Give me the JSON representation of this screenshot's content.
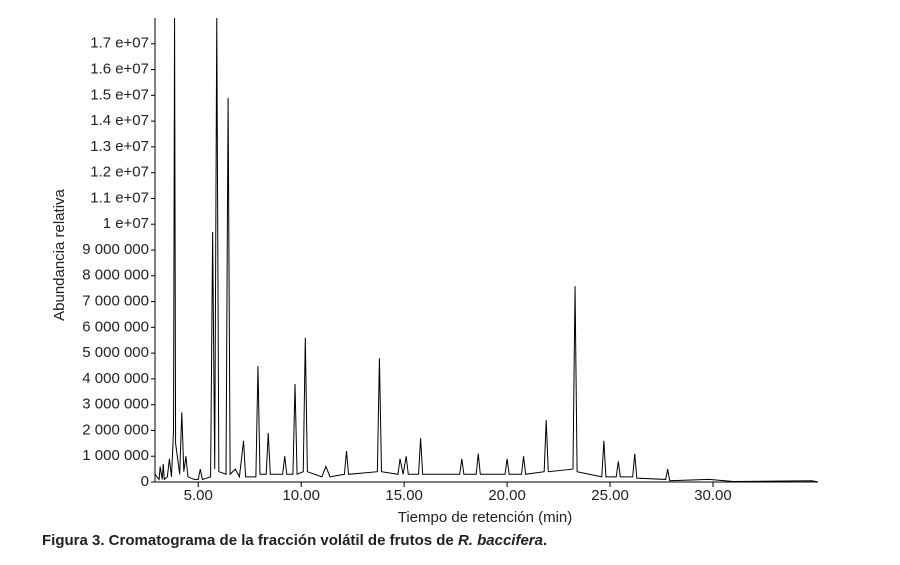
{
  "chart_data": {
    "type": "line",
    "y_label": "Abundancia relativa",
    "x_label": "Tiempo de retención (min)",
    "caption": {
      "text": "Figura 3. Cromatograma de la fracción volátil de frutos de",
      "species": "R. baccifera",
      "end": "."
    },
    "color": "#000000",
    "xlim": [
      2.9,
      35.1
    ],
    "ylim": [
      0,
      18000000
    ],
    "xticks": [
      {
        "value": 5,
        "label": "5.00"
      },
      {
        "value": 10,
        "label": "10.00"
      },
      {
        "value": 15,
        "label": "15.00"
      },
      {
        "value": 20,
        "label": "20.00"
      },
      {
        "value": 25,
        "label": "25.00"
      },
      {
        "value": 30,
        "label": "30.00"
      }
    ],
    "yticks": [
      0,
      {
        "value": 1000000,
        "label": "1 000 000"
      },
      {
        "value": 2000000,
        "label": "2 000 000"
      },
      {
        "value": 3000000,
        "label": "3 000 000"
      },
      {
        "value": 4000000,
        "label": "4 000 000"
      },
      {
        "value": 5000000,
        "label": "5 000 000"
      },
      {
        "value": 6000000,
        "label": "6 000 000"
      },
      {
        "value": 7000000,
        "label": "7 000 000"
      },
      {
        "value": 8000000,
        "label": "8 000 000"
      },
      {
        "value": 9000000,
        "label": "9 000 000"
      },
      {
        "value": 10000000,
        "label": "1 e+07"
      },
      {
        "value": 11000000,
        "label": "1.1 e+07"
      },
      {
        "value": 12000000,
        "label": "1.2 e+07"
      },
      {
        "value": 13000000,
        "label": "1.3 e+07"
      },
      {
        "value": 14000000,
        "label": "1.4 e+07"
      },
      {
        "value": 15000000,
        "label": "1.5 e+07"
      },
      {
        "value": 16000000,
        "label": "1.6 e+07"
      },
      {
        "value": 17000000,
        "label": "1.7 e+07"
      }
    ],
    "x": [
      2.9,
      3.1,
      3.15,
      3.25,
      3.3,
      3.35,
      3.5,
      3.6,
      3.7,
      3.8,
      3.85,
      3.9,
      4.1,
      4.2,
      4.3,
      4.4,
      4.5,
      4.8,
      5.0,
      5.1,
      5.2,
      5.6,
      5.7,
      5.8,
      5.9,
      6.0,
      6.35,
      6.45,
      6.55,
      6.8,
      7.0,
      7.2,
      7.3,
      7.8,
      7.9,
      8.0,
      8.3,
      8.4,
      8.5,
      9.1,
      9.2,
      9.3,
      9.6,
      9.7,
      9.8,
      10.1,
      10.2,
      10.3,
      11.0,
      11.2,
      11.4,
      12.1,
      12.2,
      12.3,
      13.7,
      13.8,
      13.9,
      14.7,
      14.8,
      14.95,
      15.1,
      15.2,
      15.7,
      15.8,
      15.9,
      17.7,
      17.8,
      17.9,
      18.5,
      18.6,
      18.7,
      19.9,
      20.0,
      20.1,
      20.7,
      20.8,
      20.9,
      21.8,
      21.9,
      22.0,
      23.2,
      23.3,
      23.4,
      24.6,
      24.7,
      24.8,
      25.3,
      25.4,
      25.5,
      26.1,
      26.2,
      26.3,
      27.7,
      27.8,
      27.9,
      29.8,
      31,
      34.8,
      35.1
    ],
    "values": [
      300000,
      100000,
      600000,
      100000,
      700000,
      100000,
      200000,
      900000,
      200000,
      2000000,
      18000000,
      1500000,
      300000,
      2700000,
      400000,
      1000000,
      200000,
      100000,
      100000,
      500000,
      100000,
      200000,
      9700000,
      500000,
      18000000,
      400000,
      300000,
      14900000,
      300000,
      500000,
      200000,
      1600000,
      200000,
      200000,
      4500000,
      300000,
      300000,
      1900000,
      300000,
      300000,
      1000000,
      300000,
      300000,
      3800000,
      300000,
      400000,
      5600000,
      400000,
      200000,
      600000,
      200000,
      300000,
      1200000,
      300000,
      400000,
      4800000,
      400000,
      300000,
      900000,
      300000,
      1000000,
      300000,
      300000,
      1700000,
      300000,
      300000,
      900000,
      300000,
      300000,
      1100000,
      300000,
      300000,
      900000,
      300000,
      300000,
      1000000,
      300000,
      400000,
      2400000,
      400000,
      500000,
      7600000,
      400000,
      200000,
      1600000,
      200000,
      200000,
      800000,
      200000,
      200000,
      1100000,
      150000,
      100000,
      500000,
      50000,
      100000,
      20000,
      50000,
      0
    ]
  }
}
